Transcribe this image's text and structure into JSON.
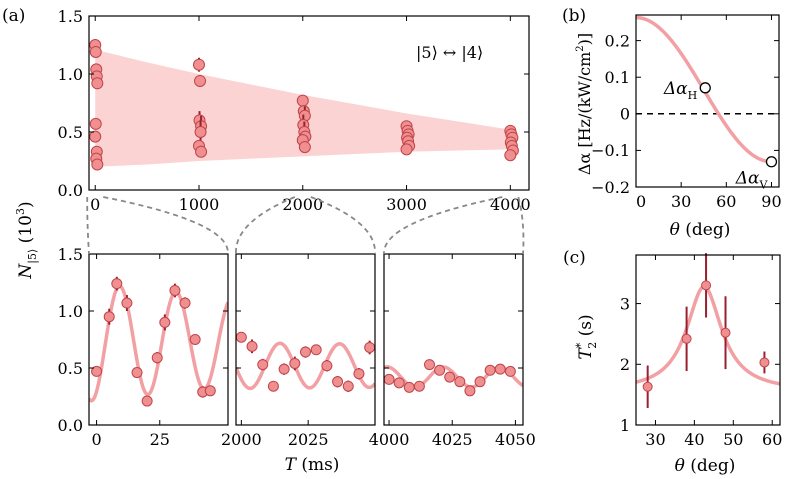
{
  "colors": {
    "marker_fill": "#f08f8f",
    "marker_edge": "#c0444a",
    "errorbar": "#9a2030",
    "band": "#fbd3d3",
    "fit": "#f2a0a3",
    "axis": "#000000",
    "connector": "#888888"
  },
  "chart_data": [
    {
      "id": "a-top",
      "panel_label": "(a)",
      "type": "scatter",
      "title": "",
      "xlabel": "",
      "ylabel_main": "N",
      "ylabel_sub": "|5⟩",
      "ylabel_unit": "(10",
      "ylabel_exp": "3",
      "ylabel_close": ")",
      "xlim": [
        -60,
        4180
      ],
      "ylim": [
        0.0,
        1.5
      ],
      "xticks": [
        0,
        1000,
        2000,
        3000,
        4000
      ],
      "xtick_labels": [
        "0",
        "1000",
        "2000",
        "3000",
        "4000"
      ],
      "yticks": [
        0.0,
        0.5,
        1.0,
        1.5
      ],
      "ytick_labels": [
        "0.0",
        "0.5",
        "1.0",
        "1.5"
      ],
      "annotation": "|5⟩ ↔ |4⟩",
      "envelope": {
        "x": [
          0,
          500,
          1000,
          1500,
          2000,
          2500,
          3000,
          3500,
          4000
        ],
        "upper": [
          1.21,
          1.1,
          1.0,
          0.91,
          0.82,
          0.74,
          0.66,
          0.59,
          0.52
        ],
        "lower": [
          0.2,
          0.22,
          0.25,
          0.27,
          0.29,
          0.31,
          0.33,
          0.34,
          0.35
        ]
      },
      "points": [
        {
          "x": 0,
          "y": 1.25,
          "err": 0.05
        },
        {
          "x": 5,
          "y": 1.19,
          "err": 0.04
        },
        {
          "x": 10,
          "y": 1.04,
          "err": 0.05
        },
        {
          "x": 15,
          "y": 0.98,
          "err": 0.04
        },
        {
          "x": 20,
          "y": 0.92,
          "err": 0.05
        },
        {
          "x": 5,
          "y": 0.57,
          "err": 0.04
        },
        {
          "x": 0,
          "y": 0.46,
          "err": 0.05
        },
        {
          "x": 15,
          "y": 0.33,
          "err": 0.04
        },
        {
          "x": 10,
          "y": 0.27,
          "err": 0.04
        },
        {
          "x": 20,
          "y": 0.22,
          "err": 0.04
        },
        {
          "x": 1000,
          "y": 1.08,
          "err": 0.06
        },
        {
          "x": 1010,
          "y": 0.94,
          "err": 0.05
        },
        {
          "x": 1005,
          "y": 0.6,
          "err": 0.08
        },
        {
          "x": 1020,
          "y": 0.55,
          "err": 0.09
        },
        {
          "x": 1015,
          "y": 0.5,
          "err": 0.1
        },
        {
          "x": 1000,
          "y": 0.38,
          "err": 0.05
        },
        {
          "x": 1020,
          "y": 0.33,
          "err": 0.05
        },
        {
          "x": 2000,
          "y": 0.77,
          "err": 0.04
        },
        {
          "x": 2010,
          "y": 0.68,
          "err": 0.05
        },
        {
          "x": 2020,
          "y": 0.64,
          "err": 0.08
        },
        {
          "x": 2005,
          "y": 0.56,
          "err": 0.09
        },
        {
          "x": 2015,
          "y": 0.5,
          "err": 0.09
        },
        {
          "x": 2025,
          "y": 0.46,
          "err": 0.05
        },
        {
          "x": 2000,
          "y": 0.43,
          "err": 0.05
        },
        {
          "x": 2020,
          "y": 0.37,
          "err": 0.05
        },
        {
          "x": 3000,
          "y": 0.55,
          "err": 0.04
        },
        {
          "x": 3010,
          "y": 0.51,
          "err": 0.04
        },
        {
          "x": 3020,
          "y": 0.48,
          "err": 0.05
        },
        {
          "x": 3005,
          "y": 0.45,
          "err": 0.05
        },
        {
          "x": 3015,
          "y": 0.42,
          "err": 0.04
        },
        {
          "x": 3025,
          "y": 0.38,
          "err": 0.05
        },
        {
          "x": 3000,
          "y": 0.35,
          "err": 0.04
        },
        {
          "x": 4000,
          "y": 0.51,
          "err": 0.03
        },
        {
          "x": 4010,
          "y": 0.48,
          "err": 0.04
        },
        {
          "x": 4020,
          "y": 0.45,
          "err": 0.04
        },
        {
          "x": 4005,
          "y": 0.41,
          "err": 0.04
        },
        {
          "x": 4015,
          "y": 0.38,
          "err": 0.05
        },
        {
          "x": 4025,
          "y": 0.34,
          "err": 0.04
        },
        {
          "x": 4000,
          "y": 0.3,
          "err": 0.04
        }
      ]
    },
    {
      "id": "a-sub1",
      "type": "scatter",
      "xlim": [
        -3,
        52
      ],
      "ylim": [
        0.0,
        1.5
      ],
      "xticks": [
        0,
        25
      ],
      "xtick_labels": [
        "0",
        "25"
      ],
      "yticks": [
        0.0,
        0.5,
        1.0,
        1.5
      ],
      "ytick_labels": [
        "0.0",
        "0.5",
        "1.0",
        "1.5"
      ],
      "fit": {
        "offset": 0.73,
        "amp": 0.52,
        "period": 22.3,
        "phase_deg": -58,
        "tau": 200
      },
      "points": [
        {
          "x": 0,
          "y": 0.47,
          "err": 0.04
        },
        {
          "x": 5,
          "y": 0.95,
          "err": 0.07
        },
        {
          "x": 8,
          "y": 1.24,
          "err": 0.06
        },
        {
          "x": 12,
          "y": 1.07,
          "err": 0.07
        },
        {
          "x": 16,
          "y": 0.46,
          "err": 0.04
        },
        {
          "x": 20,
          "y": 0.21,
          "err": 0.03
        },
        {
          "x": 24,
          "y": 0.59,
          "err": 0.05
        },
        {
          "x": 27,
          "y": 0.9,
          "err": 0.07
        },
        {
          "x": 31,
          "y": 1.18,
          "err": 0.06
        },
        {
          "x": 35,
          "y": 1.07,
          "err": 0.05
        },
        {
          "x": 39,
          "y": 0.75,
          "err": 0.04
        },
        {
          "x": 42,
          "y": 0.29,
          "err": 0.05
        },
        {
          "x": 45,
          "y": 0.3,
          "err": 0.03
        }
      ]
    },
    {
      "id": "a-sub2",
      "type": "scatter",
      "xlim": [
        1998,
        2050
      ],
      "ylim": [
        0.0,
        1.5
      ],
      "xticks": [
        2000,
        2025
      ],
      "xtick_labels": [
        "2000",
        "2025"
      ],
      "fit": {
        "offset": 0.52,
        "amp": 0.2,
        "period": 22.3,
        "phase_deg": 330,
        "tau": 1000
      },
      "points": [
        {
          "x": 2000,
          "y": 0.77,
          "err": 0.03
        },
        {
          "x": 2004,
          "y": 0.69,
          "err": 0.06
        },
        {
          "x": 2008,
          "y": 0.53,
          "err": 0.05
        },
        {
          "x": 2012,
          "y": 0.34,
          "err": 0.04
        },
        {
          "x": 2016,
          "y": 0.49,
          "err": 0.05
        },
        {
          "x": 2020,
          "y": 0.54,
          "err": 0.06
        },
        {
          "x": 2024,
          "y": 0.64,
          "err": 0.05
        },
        {
          "x": 2028,
          "y": 0.66,
          "err": 0.04
        },
        {
          "x": 2032,
          "y": 0.52,
          "err": 0.05
        },
        {
          "x": 2036,
          "y": 0.38,
          "err": 0.05
        },
        {
          "x": 2040,
          "y": 0.34,
          "err": 0.05
        },
        {
          "x": 2044,
          "y": 0.45,
          "err": 0.05
        },
        {
          "x": 2048,
          "y": 0.68,
          "err": 0.06
        }
      ]
    },
    {
      "id": "a-sub3",
      "type": "scatter",
      "xlim": [
        3998,
        4053
      ],
      "ylim": [
        0.0,
        1.5
      ],
      "xticks": [
        4000,
        4025,
        4050
      ],
      "xtick_labels": [
        "4000",
        "4025",
        "4050"
      ],
      "fit": {
        "offset": 0.42,
        "amp": 0.09,
        "period": 22.3,
        "phase_deg": 330,
        "tau": 1000
      },
      "points": [
        {
          "x": 4000,
          "y": 0.4,
          "err": 0.03
        },
        {
          "x": 4004,
          "y": 0.37,
          "err": 0.03
        },
        {
          "x": 4008,
          "y": 0.33,
          "err": 0.03
        },
        {
          "x": 4012,
          "y": 0.34,
          "err": 0.03
        },
        {
          "x": 4016,
          "y": 0.53,
          "err": 0.04
        },
        {
          "x": 4020,
          "y": 0.48,
          "err": 0.04
        },
        {
          "x": 4024,
          "y": 0.42,
          "err": 0.03
        },
        {
          "x": 4028,
          "y": 0.38,
          "err": 0.03
        },
        {
          "x": 4032,
          "y": 0.3,
          "err": 0.04
        },
        {
          "x": 4036,
          "y": 0.38,
          "err": 0.03
        },
        {
          "x": 4040,
          "y": 0.48,
          "err": 0.04
        },
        {
          "x": 4044,
          "y": 0.49,
          "err": 0.03
        },
        {
          "x": 4048,
          "y": 0.47,
          "err": 0.03
        }
      ],
      "xlabel": "T",
      "xlabel_unit": "(ms)"
    },
    {
      "id": "b",
      "panel_label": "(b)",
      "type": "line",
      "xlim": [
        0,
        95
      ],
      "ylim": [
        -0.2,
        0.27
      ],
      "xticks": [
        0,
        30,
        60,
        90
      ],
      "xtick_labels": [
        "0",
        "30",
        "60",
        "90"
      ],
      "yticks": [
        -0.2,
        -0.1,
        0.0,
        0.1,
        0.2
      ],
      "ytick_labels": [
        "−0.2",
        "−0.1",
        "0",
        "0.1",
        "0.2"
      ],
      "xlabel": "θ",
      "xlabel_unit": "(deg)",
      "ylabel": "Δα [Hz/(kW/cm",
      "ylabel_exp": "2",
      "ylabel_close": ")]",
      "curve": {
        "a": 0.066,
        "b": 0.197
      },
      "markers": [
        {
          "x": 46,
          "y": 0.071,
          "label": "Δα",
          "sub": "H"
        },
        {
          "x": 90,
          "y": -0.131,
          "label": "Δα",
          "sub": "V"
        }
      ],
      "reference_line": 0.0
    },
    {
      "id": "c",
      "panel_label": "(c)",
      "type": "scatter",
      "xlim": [
        25,
        62
      ],
      "ylim": [
        1.0,
        3.8
      ],
      "xticks": [
        30,
        40,
        50,
        60
      ],
      "xtick_labels": [
        "30",
        "40",
        "50",
        "60"
      ],
      "yticks": [
        1,
        2,
        3
      ],
      "ytick_labels": [
        "1",
        "2",
        "3"
      ],
      "xlabel": "θ",
      "xlabel_unit": "(deg)",
      "ylabel": "T",
      "ylabel_sup": "*",
      "ylabel_sub": "2",
      "ylabel_unit": "(s)",
      "fit": {
        "peak": 42.5,
        "height": 3.28,
        "width": 11.0,
        "base": 1.55
      },
      "points": [
        {
          "x": 28,
          "y": 1.63,
          "err": 0.35
        },
        {
          "x": 38,
          "y": 2.42,
          "err": 0.53
        },
        {
          "x": 43,
          "y": 3.3,
          "err": 0.53
        },
        {
          "x": 48,
          "y": 2.52,
          "err": 0.6
        },
        {
          "x": 58,
          "y": 2.03,
          "err": 0.18
        }
      ]
    }
  ]
}
